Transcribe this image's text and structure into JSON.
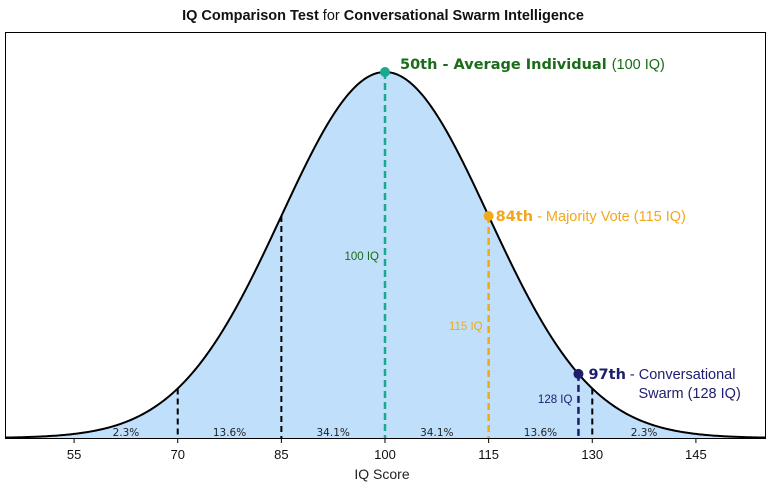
{
  "chart_data": {
    "type": "area",
    "title_parts": [
      "IQ Comparison Test",
      " for ",
      "Conversational Swarm Intelligence"
    ],
    "xlabel": "IQ Score",
    "ylabel": "",
    "mean": 100,
    "sd": 15,
    "xlim": [
      45,
      155
    ],
    "x_ticks": [
      "55",
      "70",
      "85",
      "100",
      "115",
      "130",
      "145"
    ],
    "x_tick_values": [
      55,
      70,
      85,
      100,
      115,
      130,
      145
    ],
    "sd_boundaries": [
      70,
      85,
      100,
      115,
      130
    ],
    "band_percentages": [
      {
        "from": 55,
        "to": 70,
        "label": "2.3%"
      },
      {
        "from": 70,
        "to": 85,
        "label": "13.6%"
      },
      {
        "from": 85,
        "to": 100,
        "label": "34.1%"
      },
      {
        "from": 100,
        "to": 115,
        "label": "34.1%"
      },
      {
        "from": 115,
        "to": 130,
        "label": "13.6%"
      },
      {
        "from": 130,
        "to": 145,
        "label": "2.3%"
      }
    ],
    "fill_color": "#bfdffb",
    "curve_color": "#000000",
    "markers": [
      {
        "iq": 100,
        "percentile": "50th",
        "rank_label": "50th - Average Individual",
        "value_label": "(100 IQ)",
        "line_label": "100 IQ",
        "color": "#1aa88f",
        "text_color": "#1a6b1a"
      },
      {
        "iq": 115,
        "percentile": "84th",
        "rank_label": "84th",
        "value_label": "- Majority Vote (115 IQ)",
        "line_label": "115 IQ",
        "color": "#f2a81c",
        "text_color": "#f2a81c"
      },
      {
        "iq": 128,
        "percentile": "97th",
        "rank_label": "97th",
        "value_label": "- Conversational",
        "value_label_2": "Swarm (128 IQ)",
        "line_label": "128 IQ",
        "color": "#1d1d6e",
        "text_color": "#1d1d6e"
      }
    ]
  }
}
